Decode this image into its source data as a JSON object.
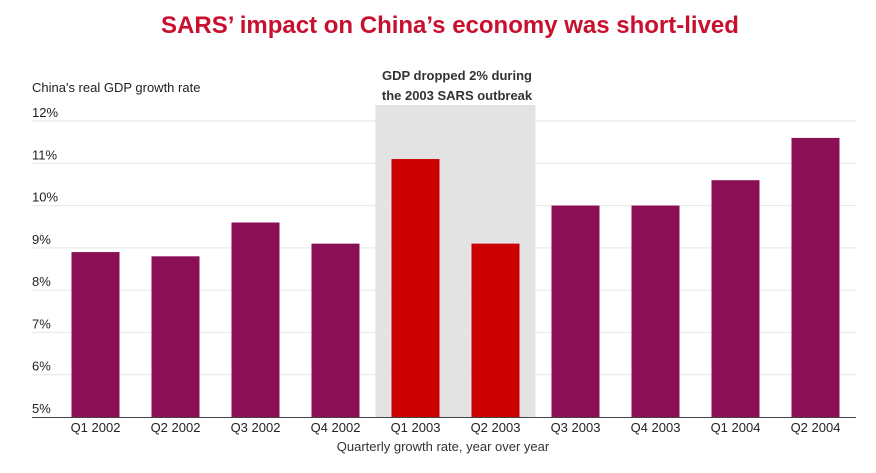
{
  "title": "SARS’ impact on China’s economy was short-lived",
  "annotation": {
    "line1": "GDP dropped 2% during",
    "line2": "the 2003 SARS outbreak",
    "highlight_categories": [
      "Q1 2003",
      "Q2 2003"
    ]
  },
  "colors": {
    "title": "#c8102e",
    "bar": "#8b0f55",
    "highlight_bar": "#cc0000",
    "highlight_band": "#e3e3e3",
    "grid": "#e6e6e6",
    "axis": "#444444"
  },
  "chart_data": {
    "type": "bar",
    "title": "SARS’ impact on China’s economy was short-lived",
    "ylabel": "China's real GDP growth rate",
    "xlabel": "Quarterly growth rate, year over year",
    "categories": [
      "Q1 2002",
      "Q2 2002",
      "Q3 2002",
      "Q4 2002",
      "Q1 2003",
      "Q2 2003",
      "Q3 2003",
      "Q4 2003",
      "Q1 2004",
      "Q2 2004"
    ],
    "values": [
      8.9,
      8.8,
      9.6,
      9.1,
      11.1,
      9.1,
      10.0,
      10.0,
      10.6,
      11.6
    ],
    "ylim": [
      5,
      12
    ],
    "yticks": [
      "5%",
      "6%",
      "7%",
      "8%",
      "9%",
      "10%",
      "11%",
      "12%"
    ],
    "grid": true
  }
}
